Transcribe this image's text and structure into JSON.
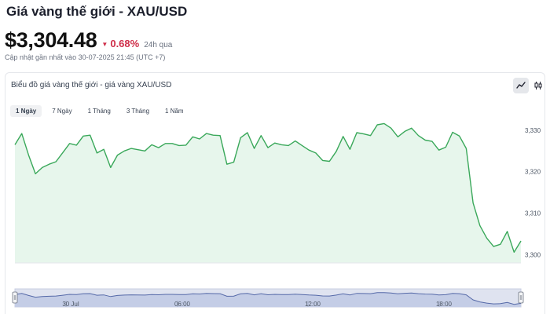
{
  "header": {
    "title": "Giá vàng thế giới - XAU/USD",
    "price": "$3,304.48",
    "change": "0.68%",
    "change_period": "24h qua",
    "updated": "Cập nhật gần nhất vào 30-07-2025 21:45 (UTC +7)"
  },
  "card": {
    "title": "Biểu đồ giá vàng thế giới - giá vàng XAU/USD",
    "tabs": [
      {
        "label": "1 Ngày",
        "active": true
      },
      {
        "label": "7 Ngày",
        "active": false
      },
      {
        "label": "1 Tháng",
        "active": false
      },
      {
        "label": "3 Tháng",
        "active": false
      },
      {
        "label": "1 Năm",
        "active": false
      }
    ],
    "icons": {
      "line": "line-chart-icon",
      "candle": "candlestick-icon"
    }
  },
  "colors": {
    "line": "#3aa85a",
    "area": "#e7f6ec",
    "negative": "#cf2e49"
  },
  "chart_data": {
    "type": "area",
    "ylim": [
      3298,
      3333
    ],
    "yticks": [
      3300,
      3310,
      3320,
      3330
    ],
    "ytick_labels": [
      "3,300",
      "3,310",
      "3,320",
      "3,330"
    ],
    "grid": false,
    "values": [
      3326.5,
      3329.2,
      3324,
      3319.5,
      3321,
      3321.8,
      3322.4,
      3324.6,
      3326.8,
      3326.4,
      3328.6,
      3328.8,
      3324.5,
      3325.4,
      3321,
      3324,
      3325,
      3325.6,
      3325.3,
      3325,
      3326.5,
      3325.8,
      3326.8,
      3326.8,
      3326.3,
      3326.4,
      3328.4,
      3327.9,
      3329.2,
      3328.8,
      3328.7,
      3321.8,
      3322.3,
      3328.2,
      3329.4,
      3325.6,
      3328.7,
      3325.8,
      3326.9,
      3326.5,
      3326.3,
      3327.4,
      3326.3,
      3325.2,
      3324.5,
      3322.7,
      3322.5,
      3324.9,
      3328.5,
      3325.4,
      3329.4,
      3329.1,
      3328.7,
      3331.3,
      3331.6,
      3330.5,
      3328.4,
      3329.7,
      3330.5,
      3328.7,
      3327.6,
      3327.3,
      3325.2,
      3325.9,
      3329.5,
      3328.6,
      3325.6,
      3312.5,
      3307,
      3304,
      3302,
      3302.5,
      3305.6,
      3300.6,
      3303.3
    ],
    "navigator": {
      "x_labels": [
        "30 Jul",
        "06:00",
        "12:00",
        "18:00"
      ]
    }
  }
}
